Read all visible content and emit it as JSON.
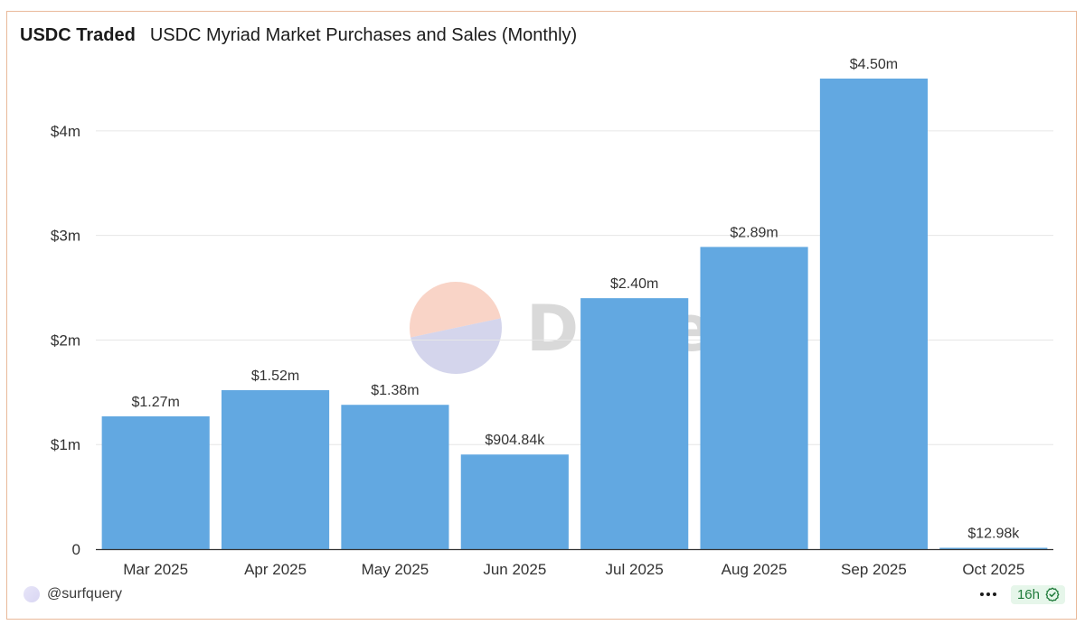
{
  "header": {
    "title": "USDC Traded",
    "subtitle": "USDC Myriad Market Purchases and Sales (Monthly)"
  },
  "watermark": {
    "text": "Dune"
  },
  "footer": {
    "author": "@surfquery",
    "age": "16h"
  },
  "colors": {
    "bar": "#62a8e1",
    "grid": "#e6e6e6",
    "axis": "#333333",
    "text": "#333333",
    "watermark_top": "#f7c6b4",
    "watermark_bottom": "#c5c7e6",
    "watermark_text": "#d9d9d9"
  },
  "chart_data": {
    "type": "bar",
    "categories": [
      "Mar 2025",
      "Apr 2025",
      "May 2025",
      "Jun 2025",
      "Jul 2025",
      "Aug 2025",
      "Sep 2025",
      "Oct 2025"
    ],
    "values": [
      1270000,
      1520000,
      1380000,
      904840,
      2400000,
      2890000,
      4500000,
      12980
    ],
    "data_labels": [
      "$1.27m",
      "$1.52m",
      "$1.38m",
      "$904.84k",
      "$2.40m",
      "$2.89m",
      "$4.50m",
      "$12.98k"
    ],
    "yticks": [
      0,
      1000000,
      2000000,
      3000000,
      4000000
    ],
    "ytick_labels": [
      "0",
      "$1m",
      "$2m",
      "$3m",
      "$4m"
    ],
    "ylim": [
      0,
      4500000
    ],
    "grid": true,
    "legend": "none"
  }
}
